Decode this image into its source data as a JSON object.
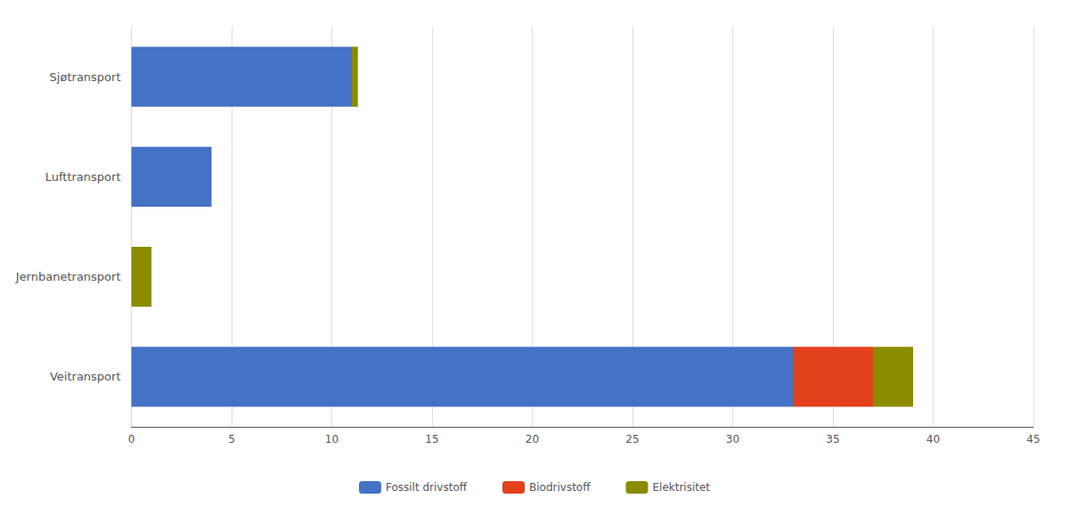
{
  "chart_data": {
    "type": "bar",
    "orientation": "horizontal",
    "stacked": true,
    "categories": [
      "Veitransport",
      "Jernbanetransport",
      "Lufttransport",
      "Sjøtransport"
    ],
    "series": [
      {
        "name": "Fossilt drivstoff",
        "color": "#4472C4",
        "values": [
          33.0,
          0.0,
          4.0,
          11.0
        ]
      },
      {
        "name": "Biodrivstoff",
        "color": "#E2411C",
        "values": [
          4.0,
          0.0,
          0.0,
          0.0
        ]
      },
      {
        "name": "Elektrisitet",
        "color": "#8B8B00",
        "values": [
          2.0,
          1.0,
          0.0,
          0.3
        ]
      }
    ],
    "xlim": [
      0,
      45
    ],
    "xticks": [
      0,
      5,
      10,
      15,
      20,
      25,
      30,
      35,
      40,
      45
    ],
    "grid": true,
    "legend": "bottom"
  }
}
